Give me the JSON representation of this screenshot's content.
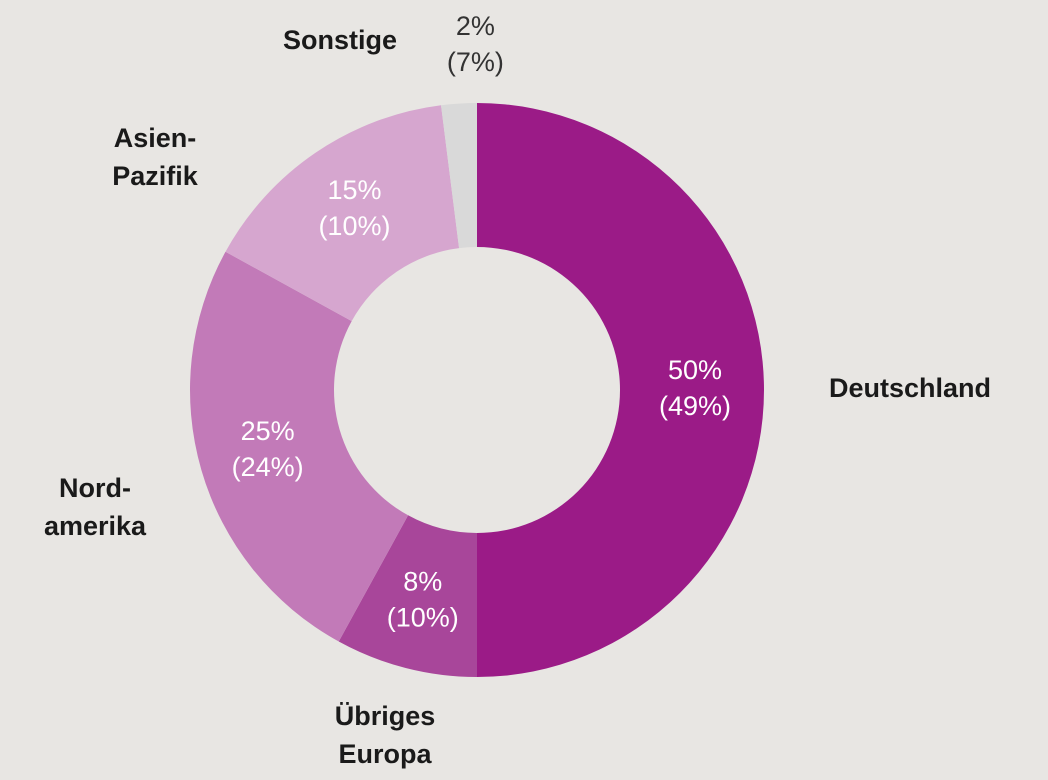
{
  "chart_data": {
    "type": "donut",
    "categories": [
      [
        "Deutschland"
      ],
      [
        "Übriges",
        "Europa"
      ],
      [
        "Nord-",
        "amerika"
      ],
      [
        "Asien-",
        "Pazifik"
      ],
      [
        "Sonstige"
      ]
    ],
    "values": [
      50,
      8,
      25,
      15,
      2
    ],
    "value_labels": [
      "50%",
      "8%",
      "25%",
      "15%",
      "2%"
    ],
    "prior_values": [
      49,
      10,
      24,
      10,
      7
    ],
    "prior_value_labels": [
      "(49%)",
      "(10%)",
      "(24%)",
      "(10%)",
      "(7%)"
    ],
    "colors": [
      "#9b1b87",
      "#a8469a",
      "#c27ab8",
      "#d6a6cf",
      "#d9d9d9"
    ]
  }
}
